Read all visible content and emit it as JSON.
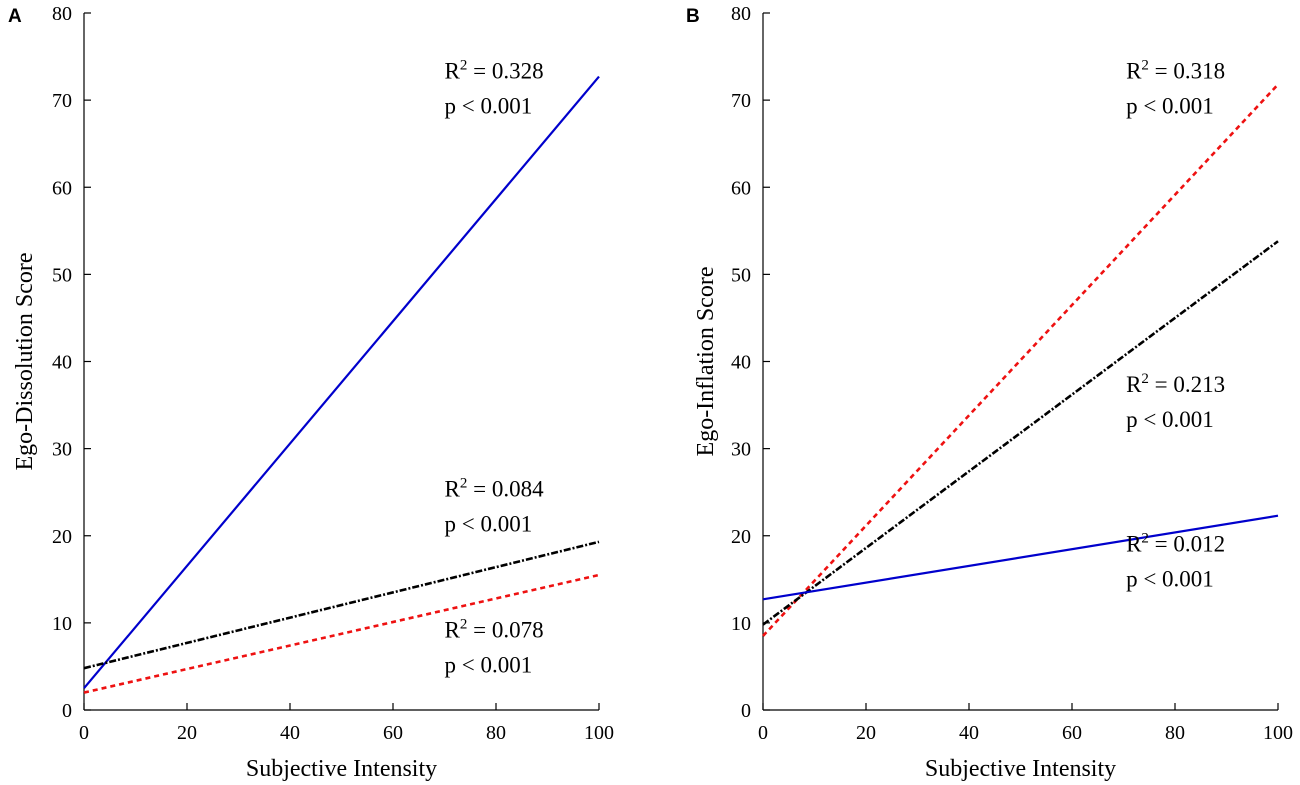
{
  "chart_data": [
    {
      "type": "line",
      "panel_label": "A",
      "xlabel": "Subjective Intensity",
      "ylabel": "Ego-Dissolution Score",
      "xlim": [
        0,
        100
      ],
      "ylim": [
        0,
        80
      ],
      "xticks": [
        0,
        20,
        40,
        60,
        80,
        100
      ],
      "yticks": [
        0,
        10,
        20,
        30,
        40,
        50,
        60,
        70,
        80
      ],
      "grid": false,
      "series": [
        {
          "name": "blue-solid",
          "color": "#0000cc",
          "dash": "solid",
          "x": [
            0,
            100
          ],
          "y": [
            2.5,
            72.7
          ]
        },
        {
          "name": "black-dashdot",
          "color": "#000000",
          "dash": "dashdot",
          "x": [
            0,
            100
          ],
          "y": [
            4.8,
            19.3
          ]
        },
        {
          "name": "red-dotted",
          "color": "#ee1111",
          "dash": "dotted",
          "x": [
            0,
            100
          ],
          "y": [
            2.0,
            15.5
          ]
        }
      ],
      "annotations": [
        {
          "r2": "0.328",
          "p": "p < 0.001",
          "anchor_x": 70,
          "anchor_y": 72.5
        },
        {
          "r2": "0.084",
          "p": "p < 0.001",
          "anchor_x": 70,
          "anchor_y": 24.5
        },
        {
          "r2": "0.078",
          "p": "p < 0.001",
          "anchor_x": 70,
          "anchor_y": 8.3
        }
      ]
    },
    {
      "type": "line",
      "panel_label": "B",
      "xlabel": "Subjective Intensity",
      "ylabel": "Ego-Inflation Score",
      "xlim": [
        0,
        100
      ],
      "ylim": [
        0,
        80
      ],
      "xticks": [
        0,
        20,
        40,
        60,
        80,
        100
      ],
      "yticks": [
        0,
        10,
        20,
        30,
        40,
        50,
        60,
        70,
        80
      ],
      "grid": false,
      "series": [
        {
          "name": "red-dotted",
          "color": "#ee1111",
          "dash": "dotted",
          "x": [
            0,
            100
          ],
          "y": [
            8.5,
            71.8
          ]
        },
        {
          "name": "black-dashdot",
          "color": "#000000",
          "dash": "dashdot",
          "x": [
            0,
            100
          ],
          "y": [
            9.8,
            53.8
          ]
        },
        {
          "name": "blue-solid",
          "color": "#0000cc",
          "dash": "solid",
          "x": [
            0,
            100
          ],
          "y": [
            12.7,
            22.3
          ]
        }
      ],
      "annotations": [
        {
          "r2": "0.318",
          "p": "p < 0.001",
          "anchor_x": 70.5,
          "anchor_y": 72.5
        },
        {
          "r2": "0.213",
          "p": "p < 0.001",
          "anchor_x": 70.5,
          "anchor_y": 36.5
        },
        {
          "r2": "0.012",
          "p": "p < 0.001",
          "anchor_x": 70.5,
          "anchor_y": 18.2
        }
      ]
    }
  ]
}
